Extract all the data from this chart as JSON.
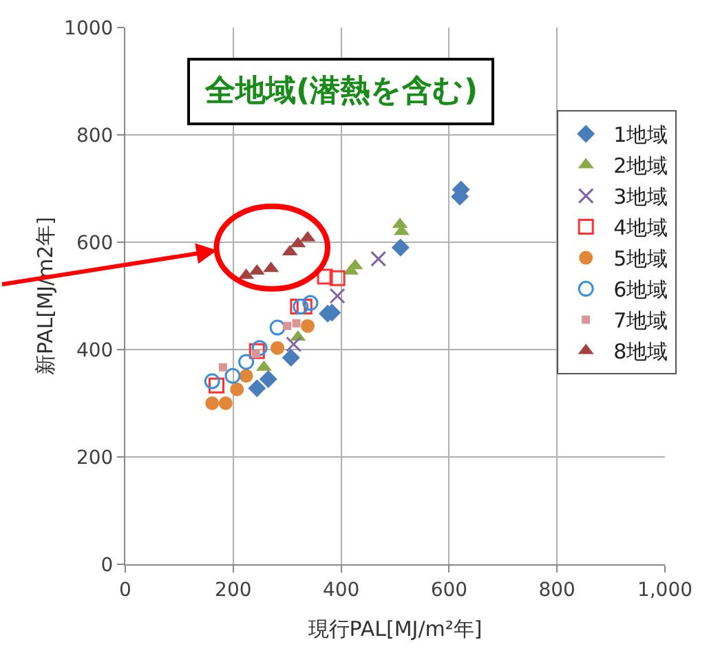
{
  "chart_data": {
    "type": "scatter",
    "title": "全地域(潜熱を含む)",
    "xlabel": "現行PAL[MJ/m²年]",
    "ylabel": "新PAL[MJ/m2年]",
    "xlim": [
      0,
      1000
    ],
    "xticks": [
      0,
      200,
      400,
      600,
      800,
      {
        "value": 1000,
        "label": "1,000"
      }
    ],
    "ylim": [
      0,
      1000
    ],
    "yticks": [
      0,
      200,
      400,
      600,
      800,
      1000
    ],
    "grid": true,
    "legend": "right",
    "series": [
      {
        "name": "1地域",
        "color": "#4a7ebb",
        "marker": "diamond",
        "x": [
          620,
          622,
          510,
          375,
          383,
          307,
          244,
          265
        ],
        "values": [
          685,
          698,
          590,
          467,
          469,
          385,
          328,
          345
        ]
      },
      {
        "name": "2地域",
        "color": "#8aaa4a",
        "marker": "triangle",
        "x": [
          509,
          512,
          426,
          418,
          320,
          257
        ],
        "values": [
          633,
          620,
          556,
          546,
          423,
          367
        ]
      },
      {
        "name": "3地域",
        "color": "#8064a2",
        "marker": "cross",
        "x": [
          469,
          393,
          312
        ],
        "values": [
          569,
          500,
          410
        ]
      },
      {
        "name": "4地域",
        "color": "#ff3333",
        "marker": "square",
        "x": [
          370,
          393,
          320,
          332,
          244,
          169
        ],
        "values": [
          536,
          533,
          480,
          480,
          397,
          333
        ]
      },
      {
        "name": "5地域",
        "color": "#e0873a",
        "marker": "circle",
        "x": [
          161,
          186,
          207,
          224,
          282,
          338
        ],
        "values": [
          300,
          300,
          326,
          351,
          403,
          444
        ]
      },
      {
        "name": "6地域",
        "color": "#3c8ed8",
        "marker": "circle",
        "x": [
          161,
          199,
          224,
          249,
          282,
          325,
          343
        ],
        "values": [
          341,
          351,
          377,
          403,
          441,
          480,
          487
        ]
      },
      {
        "name": "7地域",
        "color": "#d99694",
        "marker": "square",
        "x": [
          181,
          242,
          300,
          317
        ],
        "values": [
          367,
          392,
          444,
          449
        ]
      },
      {
        "name": "8地域",
        "color": "#a3423f",
        "marker": "triangle",
        "x": [
          224,
          244,
          270,
          305,
          320,
          338
        ],
        "values": [
          538,
          546,
          551,
          582,
          597,
          608
        ]
      }
    ]
  }
}
